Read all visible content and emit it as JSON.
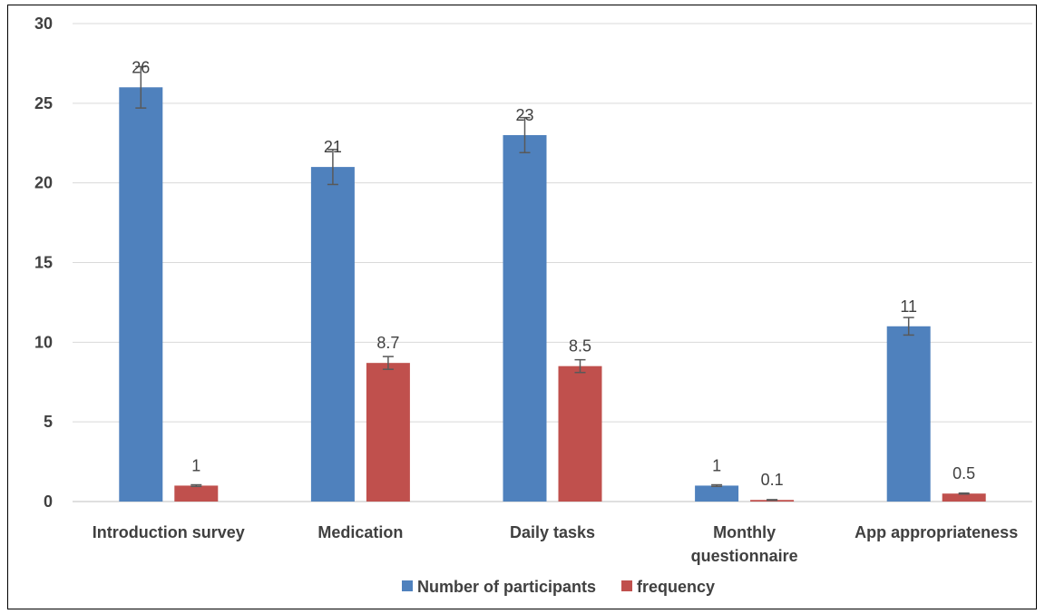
{
  "chart_data": {
    "type": "bar",
    "title": "",
    "xlabel": "",
    "ylabel": "",
    "ylim": [
      0,
      30
    ],
    "yticks": [
      0,
      5,
      10,
      15,
      20,
      25,
      30
    ],
    "grid": true,
    "legend_position": "bottom",
    "categories": [
      [
        "Introduction survey"
      ],
      [
        "Medication"
      ],
      [
        "Daily tasks"
      ],
      [
        "Monthly",
        "questionnaire"
      ],
      [
        "App appropriateness"
      ]
    ],
    "series": [
      {
        "name": "Number of participants",
        "color": "#4f81bd",
        "values": [
          26,
          21,
          23,
          1,
          11
        ],
        "labels": [
          "26",
          "21",
          "23",
          "1",
          "11"
        ],
        "error": [
          1.3,
          1.1,
          1.1,
          0.05,
          0.55
        ]
      },
      {
        "name": "frequency",
        "color": "#c0504d",
        "values": [
          1,
          8.7,
          8.5,
          0.1,
          0.5
        ],
        "labels": [
          "1",
          "8.7",
          "8.5",
          "0.1",
          "0.5"
        ],
        "error": [
          0.05,
          0.4,
          0.4,
          0.02,
          0.03
        ]
      }
    ]
  }
}
